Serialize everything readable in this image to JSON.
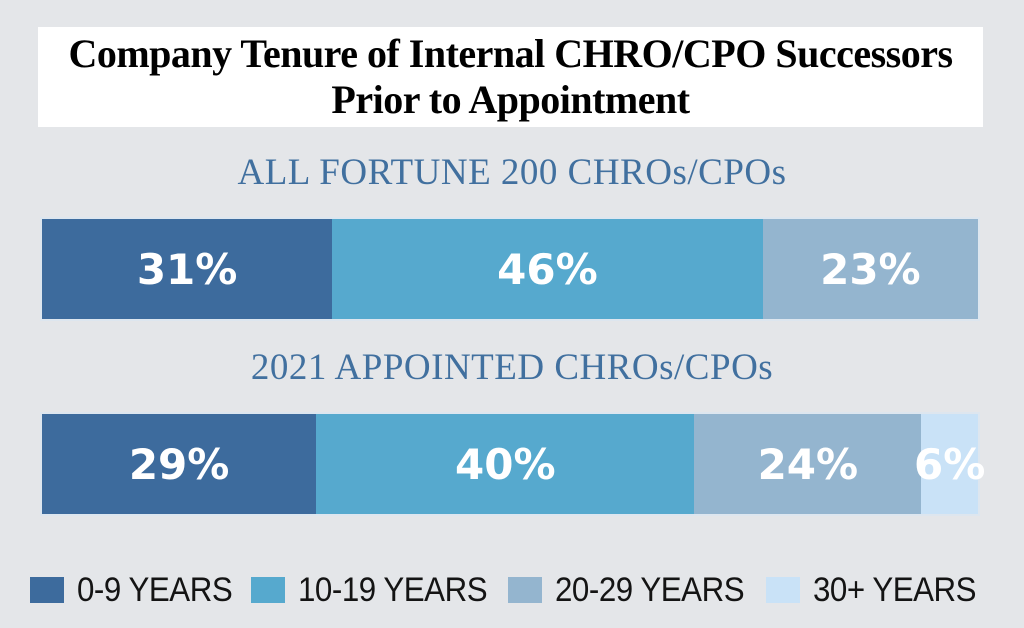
{
  "title": {
    "line1": "Company Tenure of Internal CHRO/CPO Successors",
    "line2": "Prior to Appointment"
  },
  "chart_data": {
    "type": "bar",
    "orientation": "horizontal-stacked",
    "title": "Company Tenure of Internal CHRO/CPO Successors Prior to Appointment",
    "categories": [
      "0-9 YEARS",
      "10-19 YEARS",
      "20-29 YEARS",
      "30+ YEARS"
    ],
    "series": [
      {
        "name": "ALL FORTUNE 200 CHROs/CPOs",
        "values": [
          31,
          46,
          23,
          0
        ]
      },
      {
        "name": "2021 APPOINTED CHROs/CPOs",
        "values": [
          29,
          40,
          24,
          6
        ]
      }
    ],
    "value_suffix": "%",
    "value_labels_shown": true,
    "legend_position": "bottom",
    "colors": [
      "#3d6b9d",
      "#56a9ce",
      "#94b5cf",
      "#c9e2f7"
    ]
  },
  "colors": {
    "background": "#e4e6e9",
    "title_band": "#ffffff",
    "title_text": "#000000",
    "heading_text": "#41709f",
    "bar_label_text": "#ffffff",
    "bar_border": "#dde6ef",
    "legend_text": "#141414"
  }
}
